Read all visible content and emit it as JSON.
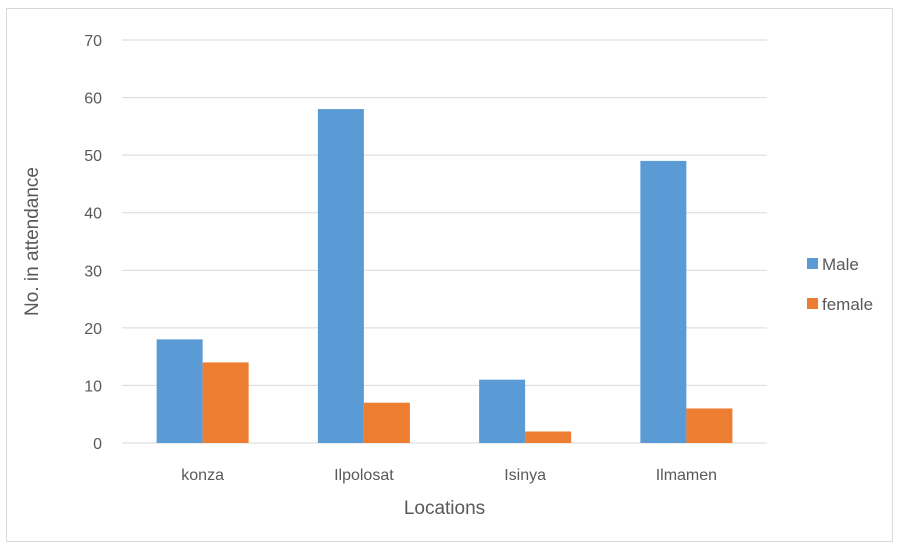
{
  "chart_data": {
    "type": "bar",
    "title": "",
    "xlabel": "Locations",
    "ylabel": "No. in attendance",
    "categories": [
      "konza",
      "Ilpolosat",
      "Isinya",
      "Ilmamen"
    ],
    "series": [
      {
        "name": "Male",
        "values": [
          18,
          58,
          11,
          49
        ],
        "color": "#5b9bd5"
      },
      {
        "name": "female",
        "values": [
          14,
          7,
          2,
          6
        ],
        "color": "#ed7d31"
      }
    ],
    "ylim": [
      0,
      70
    ],
    "yticks": [
      0,
      10,
      20,
      30,
      40,
      50,
      60,
      70
    ],
    "grid": true,
    "legend_position": "right"
  }
}
